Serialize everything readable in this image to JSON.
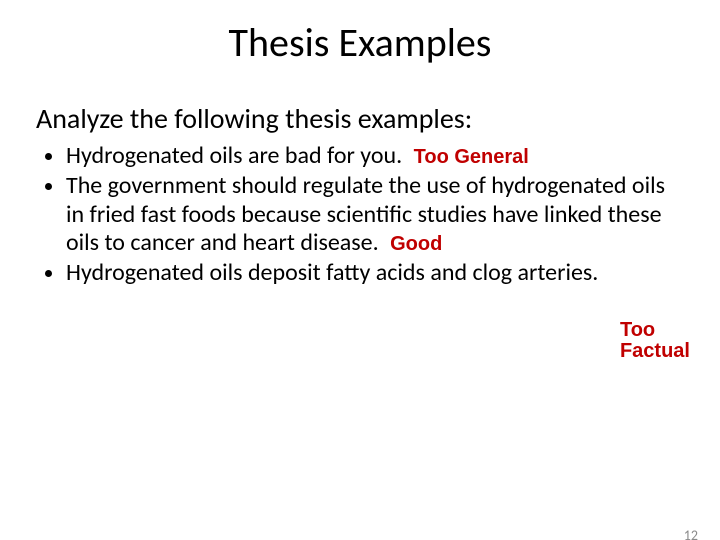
{
  "title": "Thesis Examples",
  "subtitle": "Analyze the following thesis examples:",
  "bullets": [
    {
      "text": "Hydrogenated oils are bad for you.",
      "annotation": "Too General"
    },
    {
      "text": "The government should regulate the use of hydrogenated oils in fried fast foods because scientific studies have linked these oils to cancer and heart disease.",
      "annotation": "Good"
    },
    {
      "text": "Hydrogenated oils deposit fatty acids and clog arteries."
    }
  ],
  "annotation_right": {
    "line1": "Too",
    "line2": "Factual"
  },
  "page_number": "12",
  "colors": {
    "annotation_color": "#c00000",
    "text_color": "#000000",
    "background": "#ffffff",
    "pagenum_color": "#8a8a8a"
  },
  "fontsizes": {
    "title": 40,
    "subtitle": 28,
    "bullet": 24,
    "annotation": 20,
    "pagenum": 14
  }
}
